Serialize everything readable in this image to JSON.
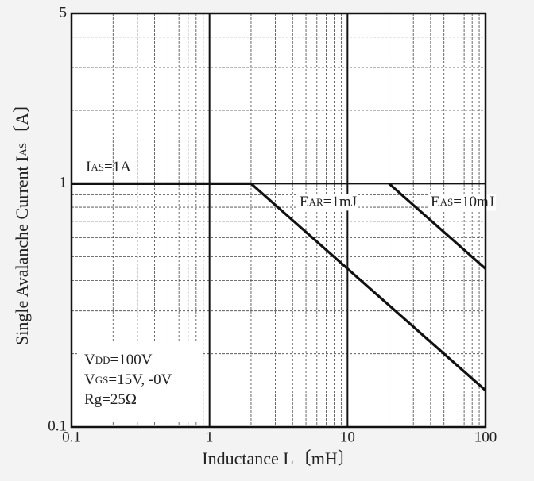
{
  "chart_data": {
    "type": "line",
    "x_label": [
      "Inductance  L",
      "〔mH〕"
    ],
    "y_label": [
      "Single Avalanche Current  I",
      "AS",
      "〔A〕"
    ],
    "log_x": true,
    "log_y": true,
    "grid": true,
    "xlim": [
      0.1,
      100
    ],
    "ylim": [
      0.1,
      5
    ],
    "xticks": [
      0.1,
      1,
      10,
      100
    ],
    "yticks": [
      0.1,
      1,
      5
    ],
    "xminor_ticks": [
      0.2,
      0.3,
      0.4,
      0.5,
      0.6,
      0.7,
      0.8,
      0.9,
      2,
      3,
      4,
      5,
      6,
      7,
      8,
      9,
      20,
      30,
      40,
      50,
      60,
      70,
      80,
      90
    ],
    "yminor_ticks": [
      0.2,
      0.3,
      0.4,
      0.5,
      0.6,
      0.7,
      0.8,
      0.9,
      2,
      3,
      4
    ],
    "series": [
      {
        "name": [
          "I",
          "AS",
          "=1A"
        ],
        "color": "#111111",
        "x": [
          0.1,
          2
        ],
        "values": [
          1,
          1
        ]
      },
      {
        "name": [
          "E",
          "AR",
          "=1mJ"
        ],
        "color": "#111111",
        "x": [
          2,
          100
        ],
        "values": [
          1,
          0.1414
        ]
      },
      {
        "name": [
          "E",
          "AS",
          "=10mJ"
        ],
        "color": "#111111",
        "x": [
          20,
          100
        ],
        "values": [
          1,
          0.447
        ]
      }
    ],
    "conditions": [
      [
        "V",
        "DD",
        "=100V"
      ],
      [
        "V",
        "GS",
        "=15V, -0V"
      ],
      [
        "Rg=25Ω"
      ]
    ]
  }
}
